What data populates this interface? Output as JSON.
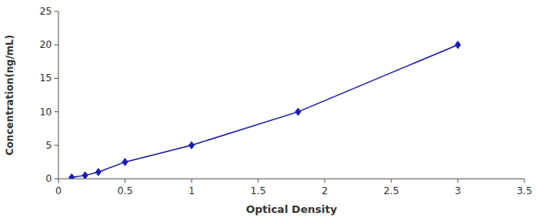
{
  "chart_data": {
    "type": "line",
    "x": [
      0.1,
      0.2,
      0.3,
      0.5,
      1.0,
      1.8,
      3.0
    ],
    "values": [
      0.2,
      0.5,
      1.0,
      2.5,
      5.0,
      10.0,
      20.0
    ],
    "color": "#1C1CA8",
    "marker": "diamond",
    "xlabel": "Optical Density",
    "ylabel": "Concentration(ng/mL)",
    "xlim": [
      0,
      3.5
    ],
    "ylim": [
      0,
      25
    ],
    "xticks": [
      0,
      0.5,
      1,
      1.5,
      2,
      2.5,
      3,
      3.5
    ],
    "yticks": [
      0,
      5,
      10,
      15,
      20,
      25
    ],
    "grid": false
  }
}
